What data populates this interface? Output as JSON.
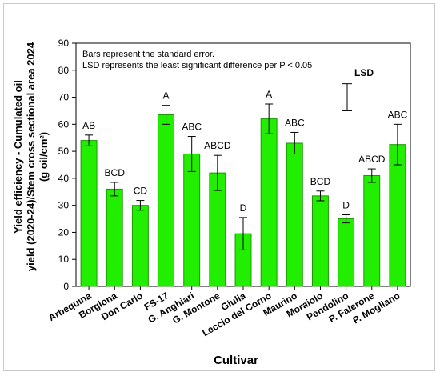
{
  "chart_data": {
    "type": "bar",
    "xlabel": "Cultivar",
    "ylabel_lines": [
      "Yield efficiency - Cumulated oil",
      "yield (2020-24)/Stem cross sectional area 2024",
      "(g oil/cm²)"
    ],
    "ylim": [
      0,
      90
    ],
    "yticks": [
      0,
      10,
      20,
      30,
      40,
      50,
      60,
      70,
      80,
      90
    ],
    "grid": false,
    "notes": [
      "Bars represent the standard error.",
      "LSD represents the least significant difference per P < 0.05"
    ],
    "lsd": {
      "label": "LSD",
      "low": 65,
      "high": 75
    },
    "categories": [
      "Arbequina",
      "Borgiona",
      "Don Carlo",
      "FS-17",
      "G. Anghiari",
      "G. Montone",
      "Giulia",
      "Leccio del Corno",
      "Maurino",
      "Moraiolo",
      "Pendolino",
      "P. Falerone",
      "P. Mogliano"
    ],
    "values": [
      54,
      36,
      30,
      63.5,
      49,
      42,
      19.5,
      62,
      53,
      33.5,
      25,
      41,
      52.5
    ],
    "errors": [
      2,
      2.5,
      1.8,
      3.5,
      6.5,
      6.5,
      6,
      5.5,
      4,
      1.8,
      1.5,
      2.5,
      7.5
    ],
    "significance": [
      "AB",
      "BCD",
      "CD",
      "A",
      "ABC",
      "ABCD",
      "D",
      "A",
      "ABC",
      "BCD",
      "D",
      "ABCD",
      "ABC"
    ],
    "colors": {
      "bar_fill": "#22ee00",
      "bar_stroke": "#1a9a00",
      "axis": "#000000"
    }
  }
}
